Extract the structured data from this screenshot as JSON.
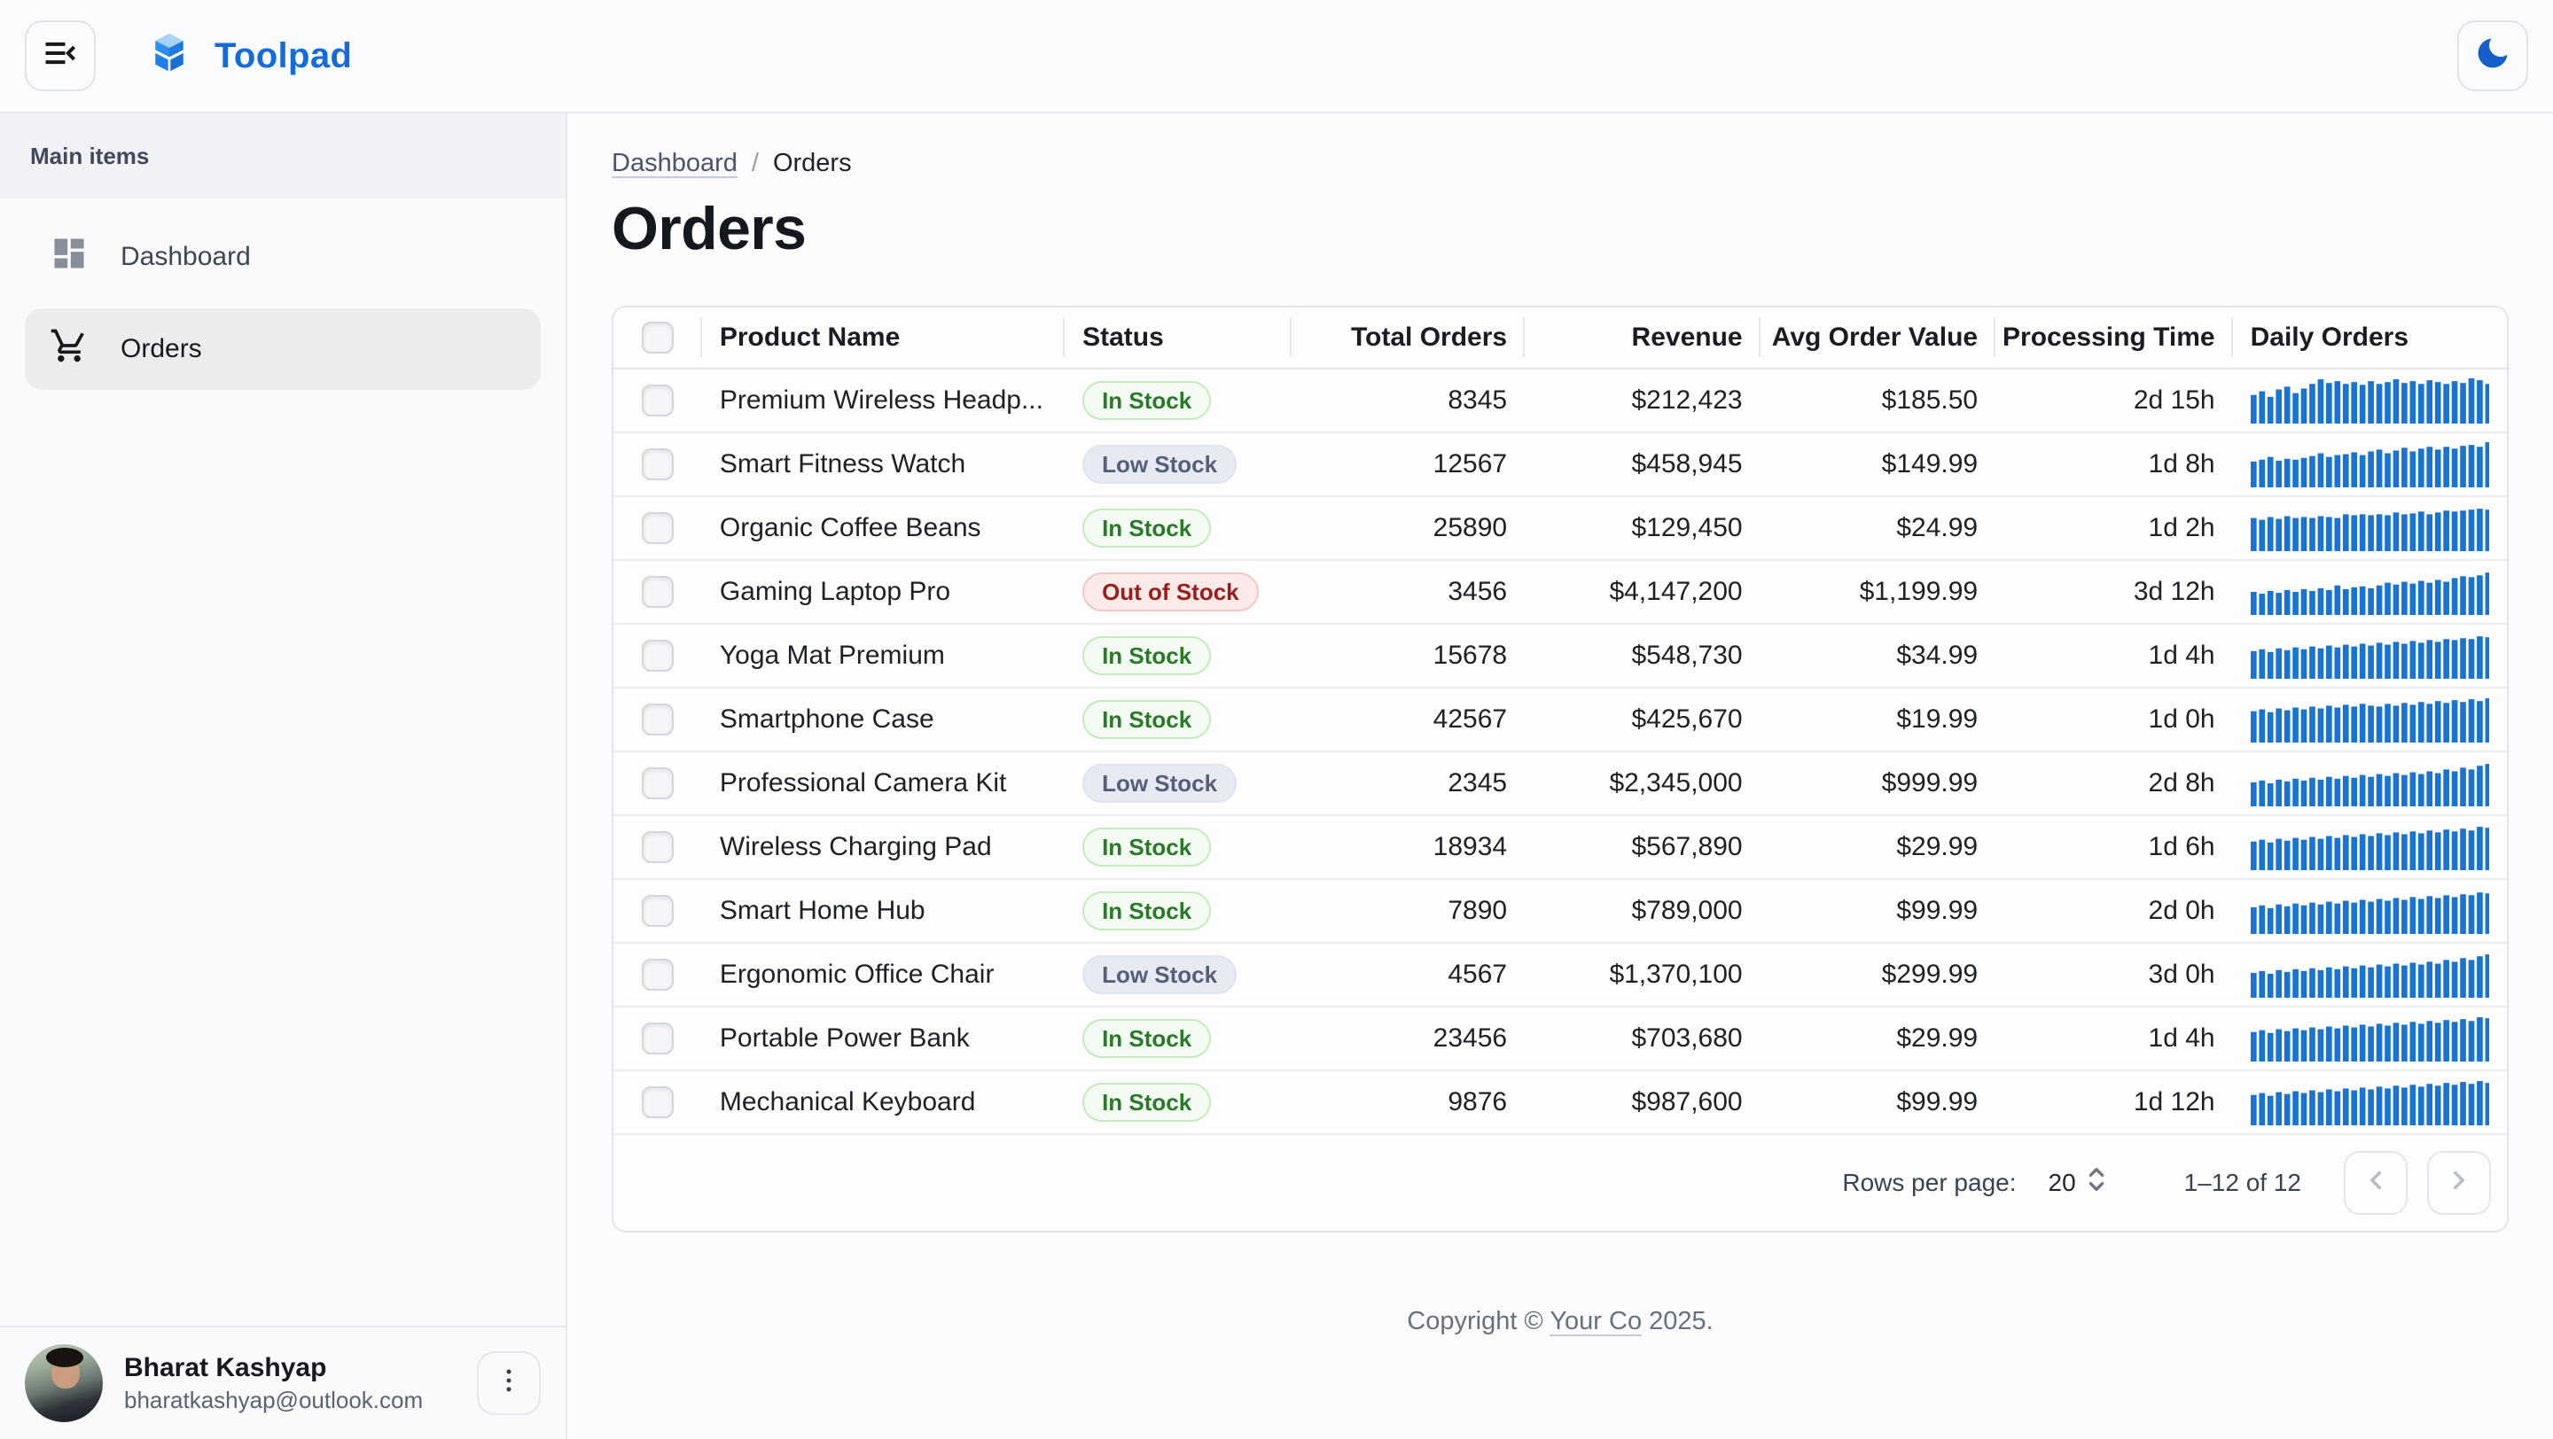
{
  "app": {
    "brand": "Toolpad",
    "accent_color": "#146bd9",
    "spark_color": "#1873d2"
  },
  "topbar": {
    "menu_tooltip": "collapse-menu",
    "theme_toggle": "dark-mode"
  },
  "sidebar": {
    "section_label": "Main items",
    "items": [
      {
        "label": "Dashboard",
        "icon": "dashboard-icon",
        "selected": false
      },
      {
        "label": "Orders",
        "icon": "cart-icon",
        "selected": true
      }
    ],
    "user": {
      "name": "Bharat Kashyap",
      "email": "bharatkashyap@outlook.com"
    }
  },
  "breadcrumb": {
    "parent": "Dashboard",
    "current": "Orders"
  },
  "page": {
    "title": "Orders"
  },
  "table": {
    "columns": [
      "Product Name",
      "Status",
      "Total Orders",
      "Revenue",
      "Avg Order Value",
      "Processing Time",
      "Daily Orders"
    ],
    "status_colors": {
      "success": {
        "bg": "#f4fbf2",
        "border": "#c4e9bc",
        "text": "#287a28"
      },
      "neutral": {
        "bg": "#e8eaf3",
        "border": "#e0e3f0",
        "text": "#556078"
      },
      "danger": {
        "bg": "#fbeae8",
        "border": "#f2c7c3",
        "text": "#9b1c1c"
      }
    },
    "rows": [
      {
        "name": "Premium Wireless Headp...",
        "status": "In Stock",
        "status_variant": "success",
        "total_orders": "8345",
        "revenue": "$212,423",
        "avg_order_value": "$185.50",
        "processing_time": "2d 15h",
        "daily_orders": [
          0.62,
          0.7,
          0.58,
          0.74,
          0.8,
          0.66,
          0.76,
          0.86,
          0.96,
          0.88,
          0.92,
          0.86,
          0.9,
          0.84,
          0.92,
          0.86,
          0.9,
          0.96,
          0.88,
          0.92,
          0.86,
          0.94,
          0.9,
          0.86,
          0.92,
          0.88,
          0.98,
          0.94,
          0.86
        ]
      },
      {
        "name": "Smart Fitness Watch",
        "status": "Low Stock",
        "status_variant": "neutral",
        "total_orders": "12567",
        "revenue": "$458,945",
        "avg_order_value": "$149.99",
        "processing_time": "1d 8h",
        "daily_orders": [
          0.56,
          0.6,
          0.66,
          0.58,
          0.62,
          0.6,
          0.64,
          0.68,
          0.74,
          0.66,
          0.7,
          0.72,
          0.76,
          0.7,
          0.78,
          0.82,
          0.74,
          0.8,
          0.86,
          0.78,
          0.84,
          0.88,
          0.82,
          0.88,
          0.84,
          0.9,
          0.92,
          0.88,
          0.98
        ]
      },
      {
        "name": "Organic Coffee Beans",
        "status": "In Stock",
        "status_variant": "success",
        "total_orders": "25890",
        "revenue": "$129,450",
        "avg_order_value": "$24.99",
        "processing_time": "1d 2h",
        "daily_orders": [
          0.72,
          0.68,
          0.74,
          0.7,
          0.76,
          0.72,
          0.74,
          0.72,
          0.76,
          0.74,
          0.72,
          0.8,
          0.78,
          0.8,
          0.78,
          0.8,
          0.78,
          0.84,
          0.8,
          0.82,
          0.86,
          0.8,
          0.84,
          0.88,
          0.86,
          0.88,
          0.9,
          0.92,
          0.9
        ]
      },
      {
        "name": "Gaming Laptop Pro",
        "status": "Out of Stock",
        "status_variant": "danger",
        "total_orders": "3456",
        "revenue": "$4,147,200",
        "avg_order_value": "$1,199.99",
        "processing_time": "3d 12h",
        "daily_orders": [
          0.5,
          0.46,
          0.52,
          0.48,
          0.54,
          0.5,
          0.56,
          0.52,
          0.58,
          0.54,
          0.64,
          0.56,
          0.6,
          0.62,
          0.58,
          0.64,
          0.7,
          0.66,
          0.72,
          0.68,
          0.74,
          0.7,
          0.76,
          0.72,
          0.8,
          0.84,
          0.82,
          0.86,
          0.92
        ]
      },
      {
        "name": "Yoga Mat Premium",
        "status": "In Stock",
        "status_variant": "success",
        "total_orders": "15678",
        "revenue": "$548,730",
        "avg_order_value": "$34.99",
        "processing_time": "1d 4h",
        "daily_orders": [
          0.6,
          0.64,
          0.58,
          0.66,
          0.62,
          0.68,
          0.64,
          0.7,
          0.66,
          0.72,
          0.68,
          0.74,
          0.7,
          0.76,
          0.72,
          0.78,
          0.74,
          0.8,
          0.76,
          0.82,
          0.78,
          0.84,
          0.8,
          0.86,
          0.84,
          0.88,
          0.86,
          0.92,
          0.9
        ]
      },
      {
        "name": "Smartphone Case",
        "status": "In Stock",
        "status_variant": "success",
        "total_orders": "42567",
        "revenue": "$425,670",
        "avg_order_value": "$19.99",
        "processing_time": "1d 0h",
        "daily_orders": [
          0.68,
          0.72,
          0.66,
          0.74,
          0.7,
          0.76,
          0.72,
          0.78,
          0.74,
          0.8,
          0.76,
          0.82,
          0.78,
          0.84,
          0.8,
          0.78,
          0.84,
          0.8,
          0.86,
          0.82,
          0.88,
          0.84,
          0.9,
          0.86,
          0.92,
          0.88,
          0.94,
          0.9,
          0.96
        ]
      },
      {
        "name": "Professional Camera Kit",
        "status": "Low Stock",
        "status_variant": "neutral",
        "total_orders": "2345",
        "revenue": "$2,345,000",
        "avg_order_value": "$999.99",
        "processing_time": "2d 8h",
        "daily_orders": [
          0.52,
          0.56,
          0.5,
          0.58,
          0.54,
          0.6,
          0.56,
          0.62,
          0.58,
          0.64,
          0.6,
          0.66,
          0.62,
          0.68,
          0.64,
          0.7,
          0.66,
          0.72,
          0.68,
          0.74,
          0.7,
          0.76,
          0.72,
          0.8,
          0.76,
          0.84,
          0.8,
          0.88,
          0.92
        ]
      },
      {
        "name": "Wireless Charging Pad",
        "status": "In Stock",
        "status_variant": "success",
        "total_orders": "18934",
        "revenue": "$567,890",
        "avg_order_value": "$29.99",
        "processing_time": "1d 6h",
        "daily_orders": [
          0.62,
          0.66,
          0.6,
          0.68,
          0.64,
          0.7,
          0.66,
          0.72,
          0.68,
          0.74,
          0.7,
          0.76,
          0.72,
          0.78,
          0.74,
          0.8,
          0.76,
          0.82,
          0.78,
          0.84,
          0.8,
          0.86,
          0.82,
          0.88,
          0.84,
          0.9,
          0.86,
          0.94,
          0.92
        ]
      },
      {
        "name": "Smart Home Hub",
        "status": "In Stock",
        "status_variant": "success",
        "total_orders": "7890",
        "revenue": "$789,000",
        "avg_order_value": "$99.99",
        "processing_time": "2d 0h",
        "daily_orders": [
          0.58,
          0.62,
          0.56,
          0.64,
          0.6,
          0.66,
          0.62,
          0.68,
          0.64,
          0.7,
          0.66,
          0.72,
          0.68,
          0.74,
          0.7,
          0.76,
          0.72,
          0.78,
          0.74,
          0.8,
          0.76,
          0.82,
          0.78,
          0.84,
          0.8,
          0.86,
          0.84,
          0.9,
          0.88
        ]
      },
      {
        "name": "Ergonomic Office Chair",
        "status": "Low Stock",
        "status_variant": "neutral",
        "total_orders": "4567",
        "revenue": "$1,370,100",
        "avg_order_value": "$299.99",
        "processing_time": "3d 0h",
        "daily_orders": [
          0.54,
          0.58,
          0.52,
          0.6,
          0.56,
          0.62,
          0.58,
          0.64,
          0.6,
          0.66,
          0.62,
          0.68,
          0.64,
          0.7,
          0.66,
          0.72,
          0.68,
          0.74,
          0.7,
          0.76,
          0.72,
          0.78,
          0.74,
          0.82,
          0.78,
          0.86,
          0.82,
          0.9,
          0.94
        ]
      },
      {
        "name": "Portable Power Bank",
        "status": "In Stock",
        "status_variant": "success",
        "total_orders": "23456",
        "revenue": "$703,680",
        "avg_order_value": "$29.99",
        "processing_time": "1d 4h",
        "daily_orders": [
          0.64,
          0.68,
          0.62,
          0.7,
          0.66,
          0.72,
          0.68,
          0.74,
          0.7,
          0.76,
          0.72,
          0.78,
          0.74,
          0.8,
          0.76,
          0.82,
          0.78,
          0.84,
          0.8,
          0.86,
          0.82,
          0.88,
          0.84,
          0.9,
          0.86,
          0.92,
          0.88,
          0.96,
          0.94
        ]
      },
      {
        "name": "Mechanical Keyboard",
        "status": "In Stock",
        "status_variant": "success",
        "total_orders": "9876",
        "revenue": "$987,600",
        "avg_order_value": "$99.99",
        "processing_time": "1d 12h",
        "daily_orders": [
          0.66,
          0.7,
          0.64,
          0.72,
          0.68,
          0.74,
          0.7,
          0.76,
          0.72,
          0.78,
          0.74,
          0.8,
          0.76,
          0.82,
          0.78,
          0.84,
          0.8,
          0.86,
          0.82,
          0.88,
          0.84,
          0.9,
          0.86,
          0.92,
          0.88,
          0.94,
          0.9,
          0.96,
          0.92
        ]
      }
    ]
  },
  "pagination": {
    "rows_per_page_label": "Rows per page:",
    "rows_per_page": "20",
    "range": "1–12 of 12"
  },
  "footer": {
    "prefix": "Copyright © ",
    "link": "Your Co",
    "suffix": " 2025."
  }
}
